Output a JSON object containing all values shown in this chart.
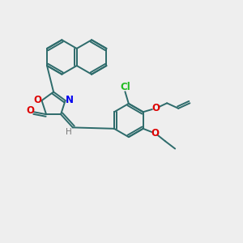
{
  "bg_color": "#eeeeee",
  "bond_color": "#2d6b6b",
  "bond_width": 1.4,
  "N_color": "#0000ee",
  "O_color": "#dd0000",
  "Cl_color": "#22bb22",
  "H_color": "#777777",
  "text_fontsize": 8.5,
  "fig_width": 3.0,
  "fig_height": 3.0,
  "dpi": 100,
  "xlim": [
    0,
    10
  ],
  "ylim": [
    0,
    10
  ]
}
